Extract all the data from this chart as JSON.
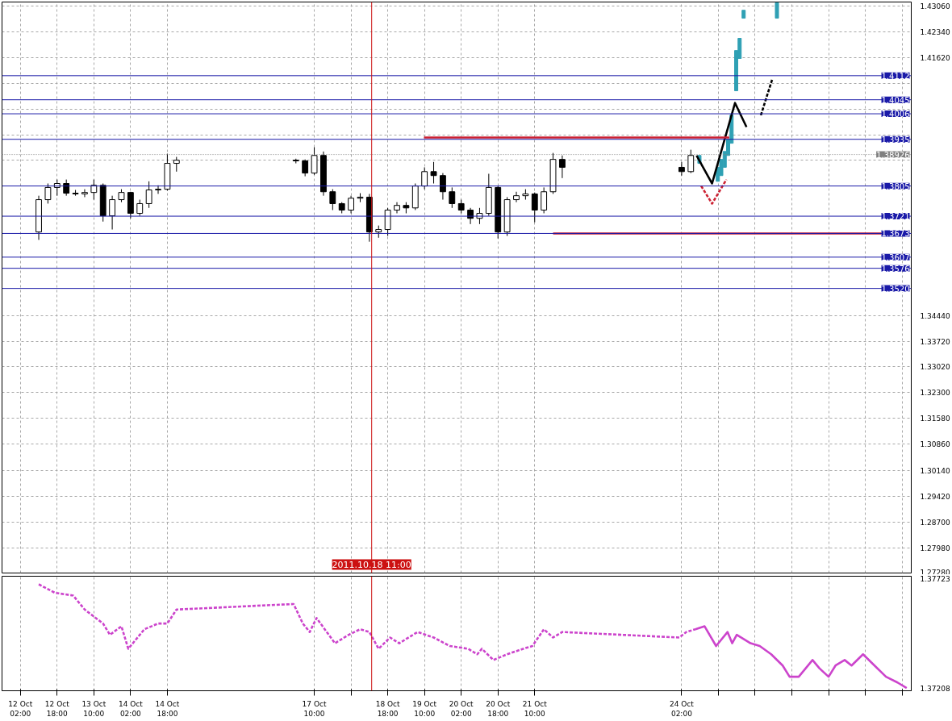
{
  "chart_data": [
    {
      "type": "candlestick",
      "x": [
        "2011-10-12T10:00",
        "2011-10-12T14:00",
        "2011-10-12T18:00",
        "2011-10-12T22:00",
        "2011-10-13T02:00",
        "2011-10-13T06:00",
        "2011-10-13T10:00",
        "2011-10-13T14:00",
        "2011-10-13T18:00",
        "2011-10-13T22:00",
        "2011-10-14T02:00",
        "2011-10-14T06:00",
        "2011-10-14T10:00",
        "2011-10-14T14:00",
        "2011-10-14T18:00",
        "2011-10-14T22:00",
        "2011-10-17T02:00",
        "2011-10-17T06:00",
        "2011-10-17T10:00",
        "2011-10-17T14:00",
        "2011-10-17T18:00",
        "2011-10-17T22:00",
        "2011-10-18T02:00",
        "2011-10-18T06:00",
        "2011-10-18T10:00",
        "2011-10-18T14:00",
        "2011-10-18T18:00",
        "2011-10-18T22:00",
        "2011-10-19T02:00",
        "2011-10-19T06:00",
        "2011-10-19T10:00",
        "2011-10-19T14:00",
        "2011-10-19T18:00",
        "2011-10-19T22:00",
        "2011-10-20T02:00",
        "2011-10-20T06:00",
        "2011-10-20T10:00",
        "2011-10-20T14:00",
        "2011-10-20T18:00",
        "2011-10-20T22:00",
        "2011-10-21T02:00",
        "2011-10-21T06:00",
        "2011-10-21T10:00",
        "2011-10-21T14:00",
        "2011-10-21T18:00",
        "2011-10-21T22:00",
        "2011-10-24T02:00",
        "2011-10-24T06:00"
      ],
      "ohlc": [
        [
          1.3677,
          1.3778,
          1.3655,
          1.3767
        ],
        [
          1.3767,
          1.3812,
          1.3756,
          1.3801
        ],
        [
          1.3801,
          1.3823,
          1.3778,
          1.3812
        ],
        [
          1.3812,
          1.3823,
          1.3778,
          1.3785
        ],
        [
          1.3785,
          1.3794,
          1.3778,
          1.3783
        ],
        [
          1.3783,
          1.3796,
          1.3774,
          1.3787
        ],
        [
          1.3787,
          1.3823,
          1.3767,
          1.3807
        ],
        [
          1.3807,
          1.3812,
          1.3706,
          1.3722
        ],
        [
          1.3722,
          1.3778,
          1.3684,
          1.3767
        ],
        [
          1.3767,
          1.3796,
          1.376,
          1.3787
        ],
        [
          1.3787,
          1.3789,
          1.3715,
          1.3729
        ],
        [
          1.3729,
          1.3767,
          1.3722,
          1.3756
        ],
        [
          1.3756,
          1.3818,
          1.3744,
          1.3794
        ],
        [
          1.3794,
          1.3807,
          1.3783,
          1.3796
        ],
        [
          1.3796,
          1.3895,
          1.3792,
          1.3868
        ],
        [
          1.3868,
          1.3886,
          1.3845,
          1.3877
        ],
        [
          1.3877,
          1.3881,
          1.3868,
          1.3875
        ],
        [
          1.3875,
          1.3879,
          1.3832,
          1.3841
        ],
        [
          1.3841,
          1.3913,
          1.3836,
          1.389
        ],
        [
          1.389,
          1.3901,
          1.3778,
          1.3789
        ],
        [
          1.3789,
          1.3796,
          1.3738,
          1.3756
        ],
        [
          1.3756,
          1.376,
          1.3729,
          1.3738
        ],
        [
          1.3738,
          1.3778,
          1.3729,
          1.3771
        ],
        [
          1.3771,
          1.3785,
          1.376,
          1.3774
        ],
        [
          1.3774,
          1.3783,
          1.365,
          1.3677
        ],
        [
          1.3677,
          1.3695,
          1.3661,
          1.3684
        ],
        [
          1.3684,
          1.3744,
          1.3666,
          1.3738
        ],
        [
          1.3738,
          1.376,
          1.3729,
          1.3751
        ],
        [
          1.3751,
          1.376,
          1.3729,
          1.3744
        ],
        [
          1.3744,
          1.3812,
          1.3738,
          1.3805
        ],
        [
          1.3805,
          1.3857,
          1.3796,
          1.3845
        ],
        [
          1.3845,
          1.3872,
          1.3812,
          1.3834
        ],
        [
          1.3834,
          1.3841,
          1.3767,
          1.3789
        ],
        [
          1.3789,
          1.3801,
          1.3744,
          1.3756
        ],
        [
          1.3756,
          1.3767,
          1.3729,
          1.3738
        ],
        [
          1.3738,
          1.3744,
          1.3699,
          1.3715
        ],
        [
          1.3715,
          1.3744,
          1.3699,
          1.3729
        ],
        [
          1.3729,
          1.3839,
          1.3722,
          1.3801
        ],
        [
          1.3801,
          1.3805,
          1.3659,
          1.3677
        ],
        [
          1.3677,
          1.3774,
          1.3666,
          1.3767
        ],
        [
          1.3767,
          1.3789,
          1.376,
          1.3778
        ],
        [
          1.3778,
          1.3796,
          1.3767,
          1.3783
        ],
        [
          1.3783,
          1.3787,
          1.3704,
          1.3738
        ],
        [
          1.3738,
          1.3801,
          1.3729,
          1.3789
        ],
        [
          1.3789,
          1.3897,
          1.3783,
          1.3879
        ],
        [
          1.3879,
          1.389,
          1.3827,
          1.3857
        ],
        [
          1.3857,
          1.3872,
          1.3834,
          1.3845
        ],
        [
          1.3845,
          1.3906,
          1.3841,
          1.389
        ]
      ],
      "series": [
        {
          "type": "bar",
          "color": "#2fa0b4",
          "x": [
            "2011-10-24T09:45",
            "2011-10-24T17:45",
            "2011-10-24T19:15",
            "2011-10-24T20:45",
            "2011-10-24T22:15",
            "2011-10-24T23:45",
            "2011-10-25T01:45",
            "2011-10-25T03:15",
            "2011-10-25T05:00",
            "2011-10-25T19:30"
          ],
          "base": [
            1.3868,
            1.3818,
            1.3834,
            1.3857,
            1.389,
            1.3924,
            1.407,
            1.416,
            1.4272,
            1.4272
          ],
          "values": [
            0.0022,
            0.0039,
            0.0045,
            0.0044,
            0.0045,
            0.0078,
            0.0112,
            0.0056,
            0.0022,
            0.0043
          ]
        },
        {
          "type": "line",
          "color": "#000000",
          "line_style": "solid",
          "x": [
            "2011-10-24T08:30",
            "2011-10-24T15:15",
            "2011-10-25T01:15",
            "2011-10-25T06:15"
          ],
          "values": [
            1.389,
            1.3812,
            1.4036,
            1.3969
          ]
        },
        {
          "type": "line",
          "color": "#000000",
          "line_style": "dashed",
          "x": [
            "2011-10-25T12:30",
            "2011-10-25T17:30"
          ],
          "values": [
            1.4002,
            1.4103
          ]
        },
        {
          "type": "line",
          "color": "#cc2233",
          "line_style": "dashed",
          "x": [
            "2011-10-24T10:30",
            "2011-10-24T15:15",
            "2011-10-24T21:30"
          ],
          "values": [
            1.3805,
            1.3756,
            1.3823
          ]
        },
        {
          "type": "line",
          "color": "#cc2233",
          "line_style": "solid",
          "x": [
            "2011-10-19T09:45",
            "2011-10-24T22:45"
          ],
          "values": [
            1.394,
            1.394
          ]
        },
        {
          "type": "line",
          "color": "#cc2233",
          "line_style": "solid",
          "x": [
            "2011-10-21T18:00",
            "2011-10-27T17:00"
          ],
          "values": [
            1.3673,
            1.3673
          ]
        }
      ],
      "ref_lines": [
        {
          "axis": "y",
          "value": 1.4112,
          "label": "1.4112",
          "color": "#1a1aa8"
        },
        {
          "axis": "y",
          "value": 1.4045,
          "label": "1.4045",
          "color": "#1a1aa8"
        },
        {
          "axis": "y",
          "value": 1.4006,
          "label": "1.4006",
          "color": "#1a1aa8"
        },
        {
          "axis": "y",
          "value": 1.3935,
          "label": "1.3935",
          "color": "#1a1aa8"
        },
        {
          "axis": "y",
          "value": 1.38926,
          "label": "1.38926",
          "color": "#808080",
          "line_style": "dotted"
        },
        {
          "axis": "y",
          "value": 1.3805,
          "label": "1.3805",
          "color": "#1a1aa8"
        },
        {
          "axis": "y",
          "value": 1.3721,
          "label": "1.3721",
          "color": "#1a1aa8"
        },
        {
          "axis": "y",
          "value": 1.3673,
          "label": "1.3673",
          "color": "#1a1aa8"
        },
        {
          "axis": "y",
          "value": 1.3607,
          "label": "1.3607",
          "color": "#1a1aa8"
        },
        {
          "axis": "y",
          "value": 1.3576,
          "label": "1.3576",
          "color": "#1a1aa8"
        },
        {
          "axis": "y",
          "value": 1.352,
          "label": "1.3520",
          "color": "#1a1aa8"
        },
        {
          "axis": "x",
          "value": "2011-10-18T11:00",
          "label": "2011.10.18 11:00",
          "color": "#cc1111"
        }
      ],
      "xlim": [
        "2011-10-11T18:00",
        "2011-10-28T06:00"
      ],
      "ylim": [
        1.2728,
        1.4317
      ],
      "xticks": [
        {
          "value": "2011-10-12T02:00",
          "label": null
        },
        {
          "value": "2011-10-12T18:00",
          "label": null
        },
        {
          "value": "2011-10-13T10:00",
          "label": null
        },
        {
          "value": "2011-10-14T02:00",
          "label": null
        },
        {
          "value": "2011-10-14T18:00",
          "label": null
        },
        {
          "value": "2011-10-17T10:00",
          "label": null
        },
        {
          "value": "2011-10-18T02:00",
          "label": null
        },
        {
          "value": "2011-10-18T18:00",
          "label": null
        },
        {
          "value": "2011-10-19T10:00",
          "label": null
        },
        {
          "value": "2011-10-20T02:00",
          "label": null
        },
        {
          "value": "2011-10-20T18:00",
          "label": null
        },
        {
          "value": "2011-10-21T10:00",
          "label": null
        },
        {
          "value": "2011-10-24T02:00",
          "label": null
        },
        {
          "value": "2011-10-24T18:00",
          "label": null
        },
        {
          "value": "2011-10-25T10:00",
          "label": null
        },
        {
          "value": "2011-10-26T02:00",
          "label": null
        },
        {
          "value": "2011-10-26T18:00",
          "label": null
        },
        {
          "value": "2011-10-27T10:00",
          "label": null
        },
        {
          "value": "2011-10-28T02:00",
          "label": null
        }
      ],
      "yticks": [
        {
          "value": 1.4306,
          "label": "1.43060"
        },
        {
          "value": 1.4234,
          "label": "1.42340"
        },
        {
          "value": 1.4162,
          "label": "1.41620"
        },
        {
          "value": 1.409,
          "label": null
        },
        {
          "value": 1.4018,
          "label": null
        },
        {
          "value": 1.3946,
          "label": null
        },
        {
          "value": 1.3876,
          "label": null
        },
        {
          "value": 1.3444,
          "label": "1.34440"
        },
        {
          "value": 1.3372,
          "label": "1.33720"
        },
        {
          "value": 1.3302,
          "label": "1.33020"
        },
        {
          "value": 1.323,
          "label": "1.32300"
        },
        {
          "value": 1.3158,
          "label": "1.31580"
        },
        {
          "value": 1.3086,
          "label": "1.30860"
        },
        {
          "value": 1.3014,
          "label": "1.30140"
        },
        {
          "value": 1.2942,
          "label": "1.29420"
        },
        {
          "value": 1.287,
          "label": "1.28700"
        },
        {
          "value": 1.2798,
          "label": "1.27980"
        },
        {
          "value": 1.2728,
          "label": "1.27280"
        }
      ],
      "grid": true,
      "tick_labels": "y"
    },
    {
      "type": "line",
      "series": [
        {
          "color": "#cc44cc",
          "line_style": "dashed",
          "x": [
            "2011-10-12T10:00",
            "2011-10-12T17:00",
            "2011-10-13T01:00",
            "2011-10-13T06:00",
            "2011-10-13T14:00",
            "2011-10-13T17:00",
            "2011-10-13T22:00",
            "2011-10-14T01:00",
            "2011-10-14T08:00",
            "2011-10-14T14:00",
            "2011-10-14T18:00",
            "2011-10-14T22:00",
            "2011-10-17T01:00",
            "2011-10-17T05:00",
            "2011-10-17T08:00",
            "2011-10-17T11:00",
            "2011-10-17T19:00",
            "2011-10-18T01:00",
            "2011-10-18T06:00",
            "2011-10-18T10:00",
            "2011-10-18T14:00",
            "2011-10-18T19:00",
            "2011-10-18T23:00",
            "2011-10-19T07:00",
            "2011-10-19T14:00",
            "2011-10-19T21:00",
            "2011-10-20T05:00",
            "2011-10-20T09:00",
            "2011-10-20T11:00",
            "2011-10-20T16:00",
            "2011-10-20T22:00",
            "2011-10-21T05:00",
            "2011-10-21T09:00",
            "2011-10-21T14:00",
            "2011-10-21T18:00",
            "2011-10-21T22:00",
            "2011-10-24T01:00",
            "2011-10-24T04:00",
            "2011-10-24T08:00"
          ],
          "values": [
            1.37697,
            1.37657,
            1.37644,
            1.37578,
            1.37512,
            1.37459,
            1.37499,
            1.37393,
            1.37485,
            1.37512,
            1.37512,
            1.37578,
            1.37604,
            1.37512,
            1.37472,
            1.37538,
            1.37419,
            1.37459,
            1.37485,
            1.37472,
            1.37393,
            1.37446,
            1.37419,
            1.37472,
            1.37446,
            1.37406,
            1.37393,
            1.37367,
            1.37393,
            1.3734,
            1.37367,
            1.37393,
            1.37406,
            1.37485,
            1.37446,
            1.37472,
            1.37446,
            1.37472,
            1.37485
          ]
        },
        {
          "color": "#cc44cc",
          "line_style": "solid",
          "x": [
            "2011-10-24T08:00",
            "2011-10-24T12:00",
            "2011-10-24T17:00",
            "2011-10-24T22:00",
            "2011-10-25T00:00",
            "2011-10-25T02:00",
            "2011-10-25T08:00",
            "2011-10-25T12:00",
            "2011-10-25T17:00",
            "2011-10-25T22:00",
            "2011-10-26T01:00",
            "2011-10-26T05:00",
            "2011-10-26T11:00",
            "2011-10-26T14:00",
            "2011-10-26T18:00",
            "2011-10-26T21:00",
            "2011-10-27T01:00",
            "2011-10-27T04:00",
            "2011-10-27T09:00",
            "2011-10-27T14:00",
            "2011-10-27T19:00",
            "2011-10-28T00:00",
            "2011-10-28T04:00"
          ],
          "values": [
            1.37485,
            1.37499,
            1.37406,
            1.37472,
            1.37419,
            1.37459,
            1.37419,
            1.37406,
            1.37367,
            1.37314,
            1.37261,
            1.37261,
            1.3734,
            1.37301,
            1.37261,
            1.37314,
            1.3734,
            1.37314,
            1.37367,
            1.37314,
            1.37261,
            1.37234,
            1.37208
          ]
        }
      ],
      "ref_lines": [
        {
          "axis": "x",
          "value": "2011-10-18T11:00",
          "color": "#cc1111"
        }
      ],
      "xlim": [
        "2011-10-11T18:00",
        "2011-10-28T06:00"
      ],
      "ylim": [
        1.37195,
        1.37735
      ],
      "xticks": [
        {
          "value": "2011-10-12T02:00",
          "label": "12 Oct 02:00"
        },
        {
          "value": "2011-10-12T18:00",
          "label": "12 Oct 18:00"
        },
        {
          "value": "2011-10-13T10:00",
          "label": "13 Oct 10:00"
        },
        {
          "value": "2011-10-14T02:00",
          "label": "14 Oct 02:00"
        },
        {
          "value": "2011-10-14T18:00",
          "label": "14 Oct 18:00"
        },
        {
          "value": "2011-10-17T10:00",
          "label": "17 Oct 10:00"
        },
        {
          "value": "2011-10-18T02:00",
          "label": null
        },
        {
          "value": "2011-10-18T18:00",
          "label": "18 Oct 18:00"
        },
        {
          "value": "2011-10-19T10:00",
          "label": "19 Oct 10:00"
        },
        {
          "value": "2011-10-20T02:00",
          "label": "20 Oct 02:00"
        },
        {
          "value": "2011-10-20T18:00",
          "label": "20 Oct 18:00"
        },
        {
          "value": "2011-10-21T10:00",
          "label": "21 Oct 10:00"
        },
        {
          "value": "2011-10-24T02:00",
          "label": "24 Oct 02:00"
        },
        {
          "value": "2011-10-24T18:00",
          "label": null
        },
        {
          "value": "2011-10-25T10:00",
          "label": null
        },
        {
          "value": "2011-10-26T02:00",
          "label": null
        },
        {
          "value": "2011-10-26T18:00",
          "label": null
        },
        {
          "value": "2011-10-27T10:00",
          "label": null
        },
        {
          "value": "2011-10-28T02:00",
          "label": null
        }
      ],
      "yticks": [
        {
          "value": 1.37723,
          "label": "1.37723"
        },
        {
          "value": 1.37208,
          "label": "1.37208"
        }
      ],
      "grid": "x"
    }
  ]
}
